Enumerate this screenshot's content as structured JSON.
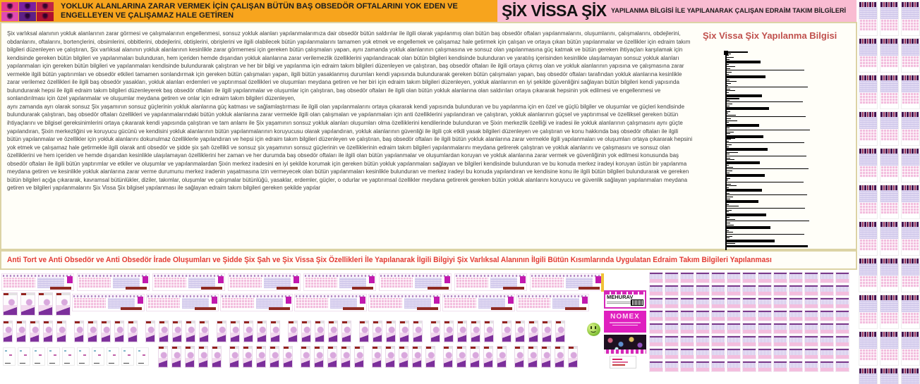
{
  "header": {
    "banner_title": "YOKLUK ALANLARINA ZARAR VERMEK İÇİN ÇALIŞAN BÜTÜN BAŞ OBSEDÖR OFTALARINI YOK EDEN VE ENGELLEYEN VE ÇALIŞAMAZ HALE GETİREN",
    "brand_title": "ŞİX VİSSA ŞİX",
    "brand_subtitle": "YAPILANMA BİLGİSİ İLE YAPILANARAK ÇALIŞAN EDRAİM TAKIM BİLGİLERİ"
  },
  "body_text": {
    "paragraph_1": "Şix varlıksal alanının yokluk alanlarının zarar görmesi ve çalışmalarının engellenmesi, sonsuz yokluk alanları yapılanmalarımıza dair obsedör bütün saldırılar ile ilgili olarak yapılanmış olan bütün baş obsedör oftaları yapılanmalarını, oluşumlarını, çalışmalarını, obdejlerini, obdanlarını, oftalarını, bortençlerini, obsimlerini, obbitlerini, obdejlerini, obtişlerini, obrişlerini ve ilgili olabilecek bütün yapılanmalarını tamamen yok etmek ve engellemek ve çalışamaz hale getirmek için çalışan ve ortaya çıkan bütün yapılanmalar ve özellikler için edraim takım bilgileri düzenleyen ve çalıştıran, Şix varlıksal alanının yokluk alanlarının kesinlikle zarar görmemesi için gereken bütün çalışmaları yapan, aynı zamanda yokluk alanlarının çalışmasına ve sonsuz olan yapılanmasına güç katmak ve bütün gereken ihtiyaçları karşılamak için kendisinde gereken bütün bilgileri ve yapılanmaları bulunduran, hem içeriden hemde dışarıdan yokluk alanlarına zarar verilemezlik özelliklerini yapılandıracak olan bütün bilgileri kendisinde bulunduran ve yaratılış içerisinden kesinlikle ulaşılamayan sonsuz yokluk alanları yapılanmaları için gereken bütün bilgileri ve yapılanmaları kendisinde bulundurarak çalıştıran ve her bir bilgi ve yapılanma için edraim takım bilgileri düzenleyen ve çalıştıran, baş obsedör oftaları ile ilgili ortaya çıkmış olan ve yokluk alanlarının yapısına ve çalışmasına zarar vermekle ilgili bütün yaptırımları ve obsedör etkileri tamamen sonlandırmak için gereken bütün çalışmaları yapan, ilgili bütün yasaklanmış durumları kendi yapısında bulundurarak gereken bütün çalışmaları yapan, baş obsedör oftaları tarafından yokluk alanlarına kesinlikle zarar verilemez özellikleri ile ilgili baş obsedör yasakları, yokluk alanları erdemleri ve yaptırımsal özellikleri ve oluşumları meydana getiren ve her biri için edraim takım bilgileri düzenleyen, yokluk alanlarının en iyi şekilde güvenliğini sağlayan bütün bilgileri kendi yapısında bulundurarak hepsi ile ilgili edraim takım bilgileri düzenleyerek baş obsedör oftaları ile ilgili yapılanmalar ve oluşumlar için çalıştıran, baş obsedör oftaları ile ilgili olan bütün yokluk alanlarına olan saldırıları ortaya çıkararak hepsinin yok edilmesi ve engellenmesi ve sonlandırılması için özel yapılanmalar ve oluşumlar meydana getiren ve onlar için edraim takım bilgileri düzenleyen,",
    "paragraph_2": "aynı zamanda ayrı olarak sonsuz Şix yaşamının sonsuz güçlerinin yokluk alanlarına güç katması ve sağlamlaştırması ile ilgili olan yapılanmalarını ortaya çıkararak kendi yapısında bulunduran ve bu yapılanma için en özel ve güçlü bilgiler ve oluşumlar ve güçleri kendisinde bulundurarak çalıştıran, baş obsedör oftaları özellikleri ve yapılanmalarındaki bütün yokluk alanlarına zarar vermekle ilgili olan çalışmaları ve yapılanmaları için anti özelliklerini yapılandıran ve çalıştıran, yokluk alanlarının güçsel ve yaptırımsal ve özelliksel gereken bütün ihtiyaçlarını ve bilgisel gereksinimlerini ortaya çıkararak kendi yapısında çalıştıran ve tam anlamı ile Şix yaşamının sonsuz yokluk alanları oluşumları olma özelliklerini kendilerinde bulunduran ve Şixin merkezlik özelliği ve iradesi ile yokluk alanlarının çalışmasını aynı güçte yapılandıran, Şixin merkezliğini ve koruyucu gücünü ve kendisini yokluk alanlarının bütün yapılanmalarının koruyucusu olarak yapılandıran, yokluk alanlarının güvenliği ile ilgili çok etkili yasak bilgileri düzenleyen ve çalıştıran ve konu hakkında baş obsedör oftaları ile ilgili bütün yapılanmalar ve özellikler için yokluk alanlarını dokunulmaz özelliklerle yapılandıran ve hepsi için edraim takım bilgileri düzenleyen ve çalıştıran, baş obsedör oftaları ile ilgili bütün yokluk alanlarına zarar vermekle ilgili yapılanmaları ve oluşumları ortaya çıkararak hepsini yok etmek ve çalışamaz hale getirmekle ilgili olarak anti obsedör ve şidde şix şah özellikli ve sonsuz şix yaşamının sonsuz güçlerinin ve özelliklerinin edraim takım bilgileri yapılanmalarını meydana getirerek çalıştıran ve yokluk alanlarını ve çalışmasını ve sonsuz olan özelliklerini ve hem içeriden ve hemde dışarıdan kesinlikle ulaşılamayan özelliklerini her zaman ve her durumda baş obsedör oftaları ile ilgili olan bütün yapılanmalar ve oluşumlardan koruyan ve yokluk alanlarına zarar vermek ve güvenliğinin yok edilmesi konusunda baş obsedör oftaları ile ilgili bütün yaptırımlar ve etkiler ve oluşumlar ve yapılanmalardan Şixin merkez iradesini en iyi şekilde korumak için gereken bütün yokluk yapılanmaları sağlayan ve bilgileri kendisinde bulunduran ve bu konuda merkez iradeyi koruyan üstün bir yapılanma meydana getiren ve kesinlikle yokluk alanlarına zarar verme durumunu merkez iradenin yaşatmasına izin vermeyecek olan bütün yapılanmaları kesinlikle bulunduran ve merkez iradeyi bu konuda yapılandıran ve kendisine konu ile ilgili bütün bilgileri bulundurarak ve gereken bütün bilgileri açığa çıkararak, kavramsal bütünlükler, diziler, takımlar, oluşumlar ve çalışmalar bütünlüğü, yasaklar, erdemler, güçler, o odurlar ve yaptırımsal özellikler meydana getirerek gereken bütün yokluk alanlarını koruyucu ve güvenlik sağlayan yapılanmaları meydana getiren ve bilgileri yapılanmalarını Şix Vissa Şix bilgisel yapılanması ile sağlayan edraim takım bilgileri gereken şekilde yapılar"
  },
  "chart_data": {
    "type": "bar",
    "orientation": "horizontal-spike-tree",
    "title": "Şix Vissa Şix Yapılanma Bilgisi",
    "xlabel": "",
    "ylabel": "",
    "axis": "single vertical baseline, no ticks, no labels",
    "unit": "relative length (px)",
    "spikes": [
      [
        30,
        2
      ],
      [
        6,
        1
      ],
      [
        3,
        1
      ],
      [
        10,
        1
      ],
      [
        4,
        1
      ],
      [
        48,
        4
      ],
      [
        8,
        1
      ],
      [
        3,
        1
      ],
      [
        12,
        1
      ],
      [
        5,
        1
      ],
      [
        110,
        1
      ],
      [
        7,
        1
      ],
      [
        3,
        1
      ],
      [
        55,
        4
      ],
      [
        9,
        1
      ],
      [
        4,
        1
      ],
      [
        14,
        1
      ],
      [
        6,
        1
      ],
      [
        2,
        1
      ],
      [
        115,
        1
      ],
      [
        5,
        1
      ],
      [
        12,
        1
      ],
      [
        3,
        1
      ],
      [
        50,
        4
      ],
      [
        7,
        1
      ],
      [
        18,
        2
      ],
      [
        4,
        1
      ],
      [
        108,
        1
      ],
      [
        8,
        1
      ],
      [
        4,
        1
      ],
      [
        60,
        4
      ],
      [
        10,
        1
      ],
      [
        5,
        1
      ],
      [
        2,
        1
      ],
      [
        13,
        1
      ],
      [
        112,
        1
      ],
      [
        6,
        1
      ],
      [
        15,
        1
      ],
      [
        3,
        1
      ],
      [
        46,
        4
      ],
      [
        9,
        1
      ],
      [
        4,
        1
      ],
      [
        118,
        1
      ],
      [
        10,
        1
      ],
      [
        5,
        1
      ],
      [
        52,
        4
      ],
      [
        12,
        2
      ],
      [
        6,
        1
      ],
      [
        3,
        1
      ],
      [
        110,
        1
      ],
      [
        7,
        1
      ],
      [
        3,
        1
      ],
      [
        58,
        4
      ],
      [
        8,
        1
      ],
      [
        16,
        1
      ],
      [
        4,
        1
      ],
      [
        113,
        1
      ],
      [
        5,
        1
      ],
      [
        11,
        1
      ],
      [
        47,
        4
      ],
      [
        6,
        1
      ],
      [
        3,
        1
      ],
      [
        9,
        1
      ],
      [
        116,
        1
      ],
      [
        8,
        1
      ],
      [
        4,
        1
      ],
      [
        54,
        4
      ],
      [
        13,
        1
      ],
      [
        5,
        1
      ],
      [
        2,
        1
      ],
      [
        109,
        1
      ],
      [
        6,
        1
      ],
      [
        14,
        1
      ],
      [
        3,
        1
      ],
      [
        50,
        4
      ],
      [
        7,
        1
      ],
      [
        4,
        1
      ],
      [
        114,
        1
      ],
      [
        9,
        1
      ],
      [
        5,
        1
      ],
      [
        45,
        4
      ],
      [
        10,
        1
      ],
      [
        3,
        1
      ],
      [
        17,
        1
      ],
      [
        111,
        1
      ],
      [
        7,
        1
      ],
      [
        3,
        1
      ],
      [
        56,
        4
      ],
      [
        8,
        1
      ],
      [
        4,
        1
      ],
      [
        12,
        1
      ],
      [
        117,
        1
      ],
      [
        5,
        1
      ],
      [
        10,
        1
      ],
      [
        62,
        4
      ],
      [
        6,
        1
      ],
      [
        3,
        1
      ],
      [
        9,
        1
      ],
      [
        110,
        1
      ],
      [
        8,
        1
      ],
      [
        4,
        1
      ],
      [
        68,
        4
      ],
      [
        28,
        2
      ],
      [
        12,
        1
      ],
      [
        115,
        3
      ],
      [
        40,
        1
      ]
    ]
  },
  "chart": {
    "title": "Şix Vissa Şix Yapılanma Bilgisi"
  },
  "footer_headline": "Anti Tort ve Anti Obsedör ve Anti Obsedör İrade Oluşumları ve Şidde Şix Şah ve Şix Vissa Şix Özellikleri İle Yapılanarak İlgili Bilgiyi Şix Varlıksal Alanının İlgili Bütün Kısımlarında Uygulatan Edraim Takım Bilgileri Yapılanması",
  "side_cards": {
    "card1_label": "MEHURAV",
    "card2_label": "NOMEX"
  },
  "colors": {
    "banner_orange": "#F7A41D",
    "banner_pink": "#F9BCD2",
    "panel_border_tan": "#DCD3A5",
    "chart_title_red": "#C0504D",
    "footer_red": "#E23A33",
    "thumb_pink": "#F3BEDE",
    "thumb_lavender": "#E9E3F5",
    "magenta_card": "#DF1FBF"
  },
  "thumbnails": {
    "logo_tiles": 6,
    "row1_wide": 8,
    "row2_portrait": 4,
    "row2_wide": 7,
    "row3_groups": 8,
    "row3_per_group": 5,
    "row4_pale": 10,
    "row4_groups": 6,
    "row4_per_group": 5,
    "right_grid_cards": 104,
    "strip_cards": 33
  }
}
